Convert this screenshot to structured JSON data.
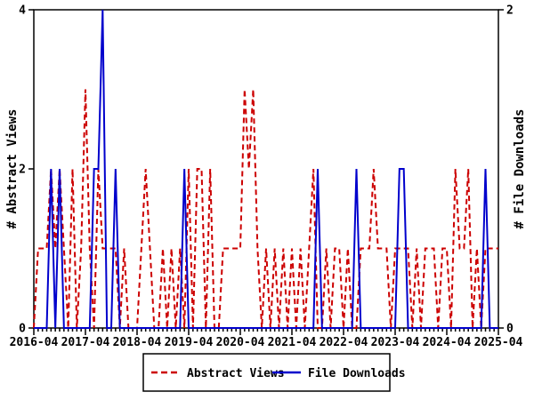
{
  "colors": {
    "views_line": "#cc0000",
    "downloads_line": "#0000cc",
    "axis": "#000000",
    "background": "#ffffff"
  },
  "left_axis": {
    "label": "# Abstract Views",
    "tick_labels": [
      "0",
      "2",
      "4"
    ],
    "tick_values": [
      0,
      2,
      4
    ],
    "min": 0,
    "max": 4
  },
  "right_axis": {
    "label": "# File Downloads",
    "tick_labels": [
      "0",
      "2"
    ],
    "tick_values": [
      0,
      2
    ],
    "min": 0,
    "max": 2
  },
  "x_axis": {
    "year_tick_labels": [
      "2016-04",
      "2017-04",
      "2018-04",
      "2019-04",
      "2020-04",
      "2021-04",
      "2022-04",
      "2023-04",
      "2024-04",
      "2025-04"
    ],
    "months_per_minor_tick": 1
  },
  "legend": {
    "items": [
      {
        "label": "Abstract Views",
        "series": "views",
        "style": "dashed"
      },
      {
        "label": "File Downloads",
        "series": "downloads",
        "style": "solid"
      }
    ]
  },
  "chart_data": {
    "type": "line",
    "title": "",
    "xlabel": "",
    "x": [
      "2016-04",
      "2016-05",
      "2016-06",
      "2016-07",
      "2016-08",
      "2016-09",
      "2016-10",
      "2016-11",
      "2016-12",
      "2017-01",
      "2017-02",
      "2017-03",
      "2017-04",
      "2017-05",
      "2017-06",
      "2017-07",
      "2017-08",
      "2017-09",
      "2017-10",
      "2017-11",
      "2017-12",
      "2018-01",
      "2018-02",
      "2018-03",
      "2018-04",
      "2018-05",
      "2018-06",
      "2018-07",
      "2018-08",
      "2018-09",
      "2018-10",
      "2018-11",
      "2018-12",
      "2019-01",
      "2019-02",
      "2019-03",
      "2019-04",
      "2019-05",
      "2019-06",
      "2019-07",
      "2019-08",
      "2019-09",
      "2019-10",
      "2019-11",
      "2019-12",
      "2020-01",
      "2020-02",
      "2020-03",
      "2020-04",
      "2020-05",
      "2020-06",
      "2020-07",
      "2020-08",
      "2020-09",
      "2020-10",
      "2020-11",
      "2020-12",
      "2021-01",
      "2021-02",
      "2021-03",
      "2021-04",
      "2021-05",
      "2021-06",
      "2021-07",
      "2021-08",
      "2021-09",
      "2021-10",
      "2021-11",
      "2021-12",
      "2022-01",
      "2022-02",
      "2022-03",
      "2022-04",
      "2022-05",
      "2022-06",
      "2022-07",
      "2022-08",
      "2022-09",
      "2022-10",
      "2022-11",
      "2022-12",
      "2023-01",
      "2023-02",
      "2023-03",
      "2023-04",
      "2023-05",
      "2023-06",
      "2023-07",
      "2023-08",
      "2023-09",
      "2023-10",
      "2023-11",
      "2023-12",
      "2024-01",
      "2024-02",
      "2024-03",
      "2024-04",
      "2024-05",
      "2024-06",
      "2024-07",
      "2024-08",
      "2024-09",
      "2024-10",
      "2024-11",
      "2024-12",
      "2025-01",
      "2025-02",
      "2025-03",
      "2025-04"
    ],
    "series": [
      {
        "name": "Abstract Views",
        "axis": "left",
        "ylim": [
          0,
          4
        ],
        "values": [
          0,
          1,
          1,
          1,
          2,
          1,
          2,
          1,
          0,
          2,
          0,
          1,
          3,
          1,
          0,
          2,
          1,
          1,
          1,
          1,
          0,
          1,
          0,
          0,
          0,
          1,
          2,
          1,
          0,
          0,
          1,
          0,
          1,
          0,
          1,
          0,
          2,
          0,
          2,
          2,
          0,
          2,
          0,
          0,
          1,
          1,
          1,
          1,
          1,
          3,
          2,
          3,
          1,
          0,
          1,
          0,
          1,
          0,
          1,
          0,
          1,
          0,
          1,
          0,
          1,
          2,
          0,
          0,
          1,
          0,
          1,
          1,
          0,
          1,
          0,
          0,
          1,
          1,
          1,
          2,
          1,
          1,
          1,
          0,
          1,
          1,
          1,
          1,
          0,
          1,
          0,
          1,
          1,
          1,
          0,
          1,
          1,
          0,
          2,
          1,
          1,
          2,
          0,
          1,
          0,
          1,
          1,
          1,
          1
        ]
      },
      {
        "name": "File Downloads",
        "axis": "right",
        "ylim": [
          0,
          2
        ],
        "values": [
          0,
          0,
          0,
          0,
          1,
          0,
          1,
          0,
          0,
          0,
          0,
          0,
          0,
          0,
          1,
          1,
          2,
          0,
          0,
          1,
          0,
          0,
          0,
          0,
          0,
          0,
          0,
          0,
          0,
          0,
          0,
          0,
          0,
          0,
          0,
          1,
          0,
          0,
          0,
          0,
          0,
          0,
          0,
          0,
          0,
          0,
          0,
          0,
          0,
          0,
          0,
          0,
          0,
          0,
          0,
          0,
          0,
          0,
          0,
          0,
          0,
          0,
          0,
          0,
          0,
          0,
          1,
          0,
          0,
          0,
          0,
          0,
          0,
          0,
          0,
          1,
          0,
          0,
          0,
          0,
          0,
          0,
          0,
          0,
          0,
          1,
          1,
          0,
          0,
          0,
          0,
          0,
          0,
          0,
          0,
          0,
          0,
          0,
          0,
          0,
          0,
          0,
          0,
          0,
          0,
          1,
          0,
          0,
          0
        ]
      }
    ],
    "grid": false,
    "legend_position": "bottom-center"
  }
}
